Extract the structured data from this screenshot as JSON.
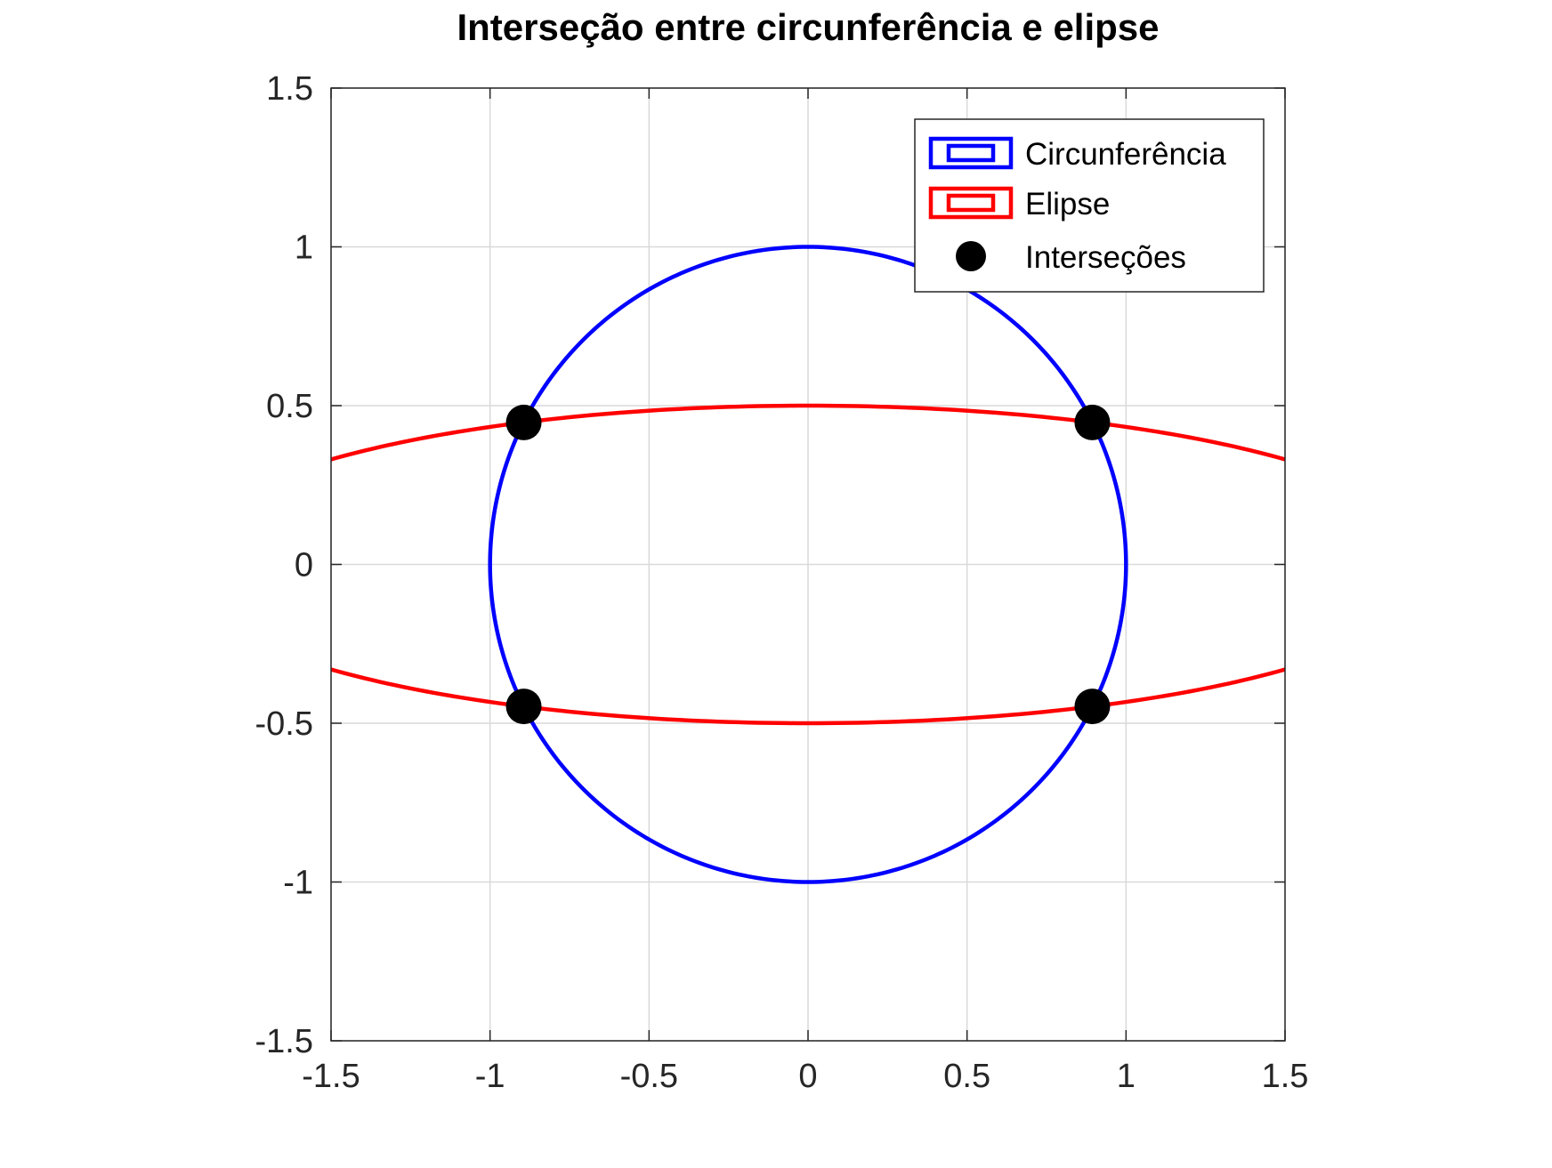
{
  "chart_data": {
    "type": "line",
    "title": "Interseção entre circunferência e elipse",
    "xlabel": "",
    "ylabel": "",
    "xlim": [
      -1.5,
      1.5
    ],
    "ylim": [
      -1.5,
      1.5
    ],
    "xticks": [
      -1.5,
      -1,
      -0.5,
      0,
      0.5,
      1,
      1.5
    ],
    "yticks": [
      -1.5,
      -1,
      -0.5,
      0,
      0.5,
      1,
      1.5
    ],
    "xtick_labels": [
      "-1.5",
      "-1",
      "-0.5",
      "0",
      "0.5",
      "1",
      "1.5"
    ],
    "ytick_labels": [
      "-1.5",
      "-1",
      "-0.5",
      "0",
      "0.5",
      "1",
      "1.5"
    ],
    "grid": true,
    "legend_position": "top-right",
    "series": [
      {
        "name": "Circunferência",
        "kind": "ellipse",
        "center": [
          0,
          0
        ],
        "semi_axes": [
          1,
          1
        ],
        "color": "#0000ff"
      },
      {
        "name": "Elipse",
        "kind": "ellipse",
        "center": [
          0,
          0
        ],
        "semi_axes": [
          2,
          0.5
        ],
        "color": "#ff0000"
      },
      {
        "name": "Interseções",
        "kind": "points",
        "color": "#000000",
        "points": [
          [
            -0.894,
            0.447
          ],
          [
            0.894,
            0.447
          ],
          [
            -0.894,
            -0.447
          ],
          [
            0.894,
            -0.447
          ]
        ]
      }
    ]
  }
}
